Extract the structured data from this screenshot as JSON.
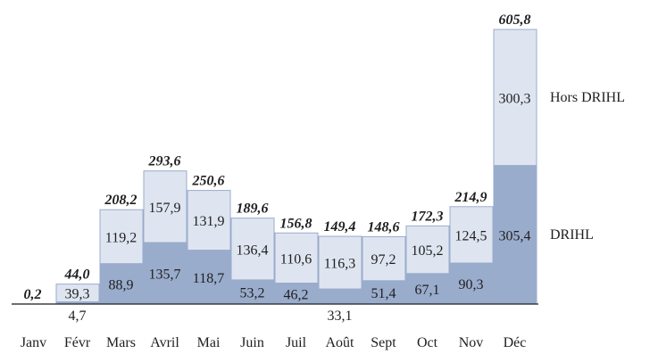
{
  "chart_data": {
    "type": "bar",
    "stacked": true,
    "categories": [
      "Janv",
      "Févr",
      "Mars",
      "Avril",
      "Mai",
      "Juin",
      "Juil",
      "Août",
      "Sept",
      "Oct",
      "Nov",
      "Déc"
    ],
    "series": [
      {
        "name": "DRIHL",
        "color": "#9aaccc",
        "values": [
          0.2,
          4.7,
          88.9,
          135.7,
          118.7,
          53.2,
          46.2,
          33.1,
          51.4,
          67.1,
          90.3,
          305.4
        ],
        "labels": [
          "",
          "4,7",
          "88,9",
          "135,7",
          "118,7",
          "53,2",
          "46,2",
          "33,1",
          "51,4",
          "67,1",
          "90,3",
          "305,4"
        ]
      },
      {
        "name": "Hors DRIHL",
        "color": "#dfe5f0",
        "values": [
          0.0,
          39.3,
          119.2,
          157.9,
          131.9,
          136.4,
          110.6,
          116.3,
          97.2,
          105.2,
          124.5,
          300.3
        ],
        "labels": [
          "",
          "39,3",
          "119,2",
          "157,9",
          "131,9",
          "136,4",
          "110,6",
          "116,3",
          "97,2",
          "105,2",
          "124,5",
          "300,3"
        ]
      }
    ],
    "totals": [
      0.2,
      44.0,
      208.2,
      293.6,
      250.6,
      189.6,
      156.8,
      149.4,
      148.6,
      172.3,
      214.9,
      605.8
    ],
    "total_labels": [
      "0,2",
      "44,0",
      "208,2",
      "293,6",
      "250,6",
      "189,6",
      "156,8",
      "149,4",
      "148,6",
      "172,3",
      "214,9",
      "605,8"
    ],
    "legend": [
      "Hors DRIHL",
      "DRIHL"
    ],
    "legend_position": "right",
    "title": "",
    "xlabel": "",
    "ylabel": "",
    "ylim": [
      0,
      605.8
    ],
    "grid": false
  }
}
